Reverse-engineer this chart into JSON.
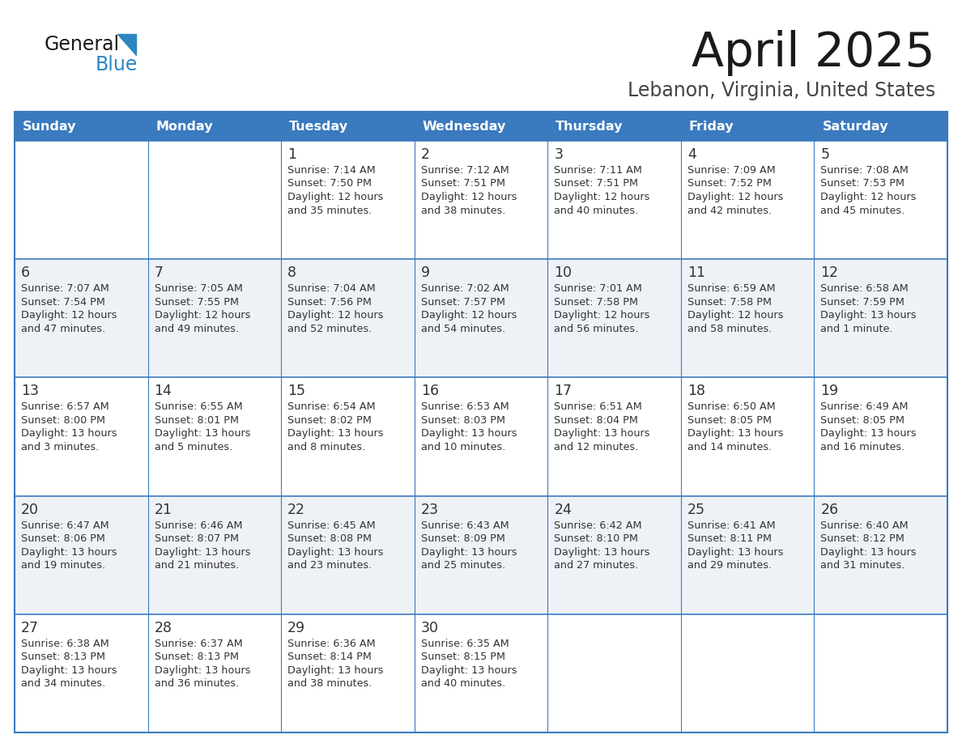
{
  "title": "April 2025",
  "subtitle": "Lebanon, Virginia, United States",
  "header_bg_color": "#3a7abf",
  "header_text_color": "#ffffff",
  "day_names": [
    "Sunday",
    "Monday",
    "Tuesday",
    "Wednesday",
    "Thursday",
    "Friday",
    "Saturday"
  ],
  "bg_color": "#ffffff",
  "row_even_color": "#ffffff",
  "row_odd_color": "#eef2f7",
  "cell_text_color": "#333333",
  "border_color": "#3a7abf",
  "logo_general_color": "#1a1a1a",
  "logo_blue_color": "#2e86c1",
  "logo_triangle_color": "#2e86c1",
  "title_color": "#1a1a1a",
  "subtitle_color": "#444444",
  "days": [
    {
      "day": 1,
      "col": 2,
      "row": 0,
      "sunrise": "7:14 AM",
      "sunset": "7:50 PM",
      "daylight": "12 hours and 35 minutes."
    },
    {
      "day": 2,
      "col": 3,
      "row": 0,
      "sunrise": "7:12 AM",
      "sunset": "7:51 PM",
      "daylight": "12 hours and 38 minutes."
    },
    {
      "day": 3,
      "col": 4,
      "row": 0,
      "sunrise": "7:11 AM",
      "sunset": "7:51 PM",
      "daylight": "12 hours and 40 minutes."
    },
    {
      "day": 4,
      "col": 5,
      "row": 0,
      "sunrise": "7:09 AM",
      "sunset": "7:52 PM",
      "daylight": "12 hours and 42 minutes."
    },
    {
      "day": 5,
      "col": 6,
      "row": 0,
      "sunrise": "7:08 AM",
      "sunset": "7:53 PM",
      "daylight": "12 hours and 45 minutes."
    },
    {
      "day": 6,
      "col": 0,
      "row": 1,
      "sunrise": "7:07 AM",
      "sunset": "7:54 PM",
      "daylight": "12 hours and 47 minutes."
    },
    {
      "day": 7,
      "col": 1,
      "row": 1,
      "sunrise": "7:05 AM",
      "sunset": "7:55 PM",
      "daylight": "12 hours and 49 minutes."
    },
    {
      "day": 8,
      "col": 2,
      "row": 1,
      "sunrise": "7:04 AM",
      "sunset": "7:56 PM",
      "daylight": "12 hours and 52 minutes."
    },
    {
      "day": 9,
      "col": 3,
      "row": 1,
      "sunrise": "7:02 AM",
      "sunset": "7:57 PM",
      "daylight": "12 hours and 54 minutes."
    },
    {
      "day": 10,
      "col": 4,
      "row": 1,
      "sunrise": "7:01 AM",
      "sunset": "7:58 PM",
      "daylight": "12 hours and 56 minutes."
    },
    {
      "day": 11,
      "col": 5,
      "row": 1,
      "sunrise": "6:59 AM",
      "sunset": "7:58 PM",
      "daylight": "12 hours and 58 minutes."
    },
    {
      "day": 12,
      "col": 6,
      "row": 1,
      "sunrise": "6:58 AM",
      "sunset": "7:59 PM",
      "daylight": "13 hours and 1 minute."
    },
    {
      "day": 13,
      "col": 0,
      "row": 2,
      "sunrise": "6:57 AM",
      "sunset": "8:00 PM",
      "daylight": "13 hours and 3 minutes."
    },
    {
      "day": 14,
      "col": 1,
      "row": 2,
      "sunrise": "6:55 AM",
      "sunset": "8:01 PM",
      "daylight": "13 hours and 5 minutes."
    },
    {
      "day": 15,
      "col": 2,
      "row": 2,
      "sunrise": "6:54 AM",
      "sunset": "8:02 PM",
      "daylight": "13 hours and 8 minutes."
    },
    {
      "day": 16,
      "col": 3,
      "row": 2,
      "sunrise": "6:53 AM",
      "sunset": "8:03 PM",
      "daylight": "13 hours and 10 minutes."
    },
    {
      "day": 17,
      "col": 4,
      "row": 2,
      "sunrise": "6:51 AM",
      "sunset": "8:04 PM",
      "daylight": "13 hours and 12 minutes."
    },
    {
      "day": 18,
      "col": 5,
      "row": 2,
      "sunrise": "6:50 AM",
      "sunset": "8:05 PM",
      "daylight": "13 hours and 14 minutes."
    },
    {
      "day": 19,
      "col": 6,
      "row": 2,
      "sunrise": "6:49 AM",
      "sunset": "8:05 PM",
      "daylight": "13 hours and 16 minutes."
    },
    {
      "day": 20,
      "col": 0,
      "row": 3,
      "sunrise": "6:47 AM",
      "sunset": "8:06 PM",
      "daylight": "13 hours and 19 minutes."
    },
    {
      "day": 21,
      "col": 1,
      "row": 3,
      "sunrise": "6:46 AM",
      "sunset": "8:07 PM",
      "daylight": "13 hours and 21 minutes."
    },
    {
      "day": 22,
      "col": 2,
      "row": 3,
      "sunrise": "6:45 AM",
      "sunset": "8:08 PM",
      "daylight": "13 hours and 23 minutes."
    },
    {
      "day": 23,
      "col": 3,
      "row": 3,
      "sunrise": "6:43 AM",
      "sunset": "8:09 PM",
      "daylight": "13 hours and 25 minutes."
    },
    {
      "day": 24,
      "col": 4,
      "row": 3,
      "sunrise": "6:42 AM",
      "sunset": "8:10 PM",
      "daylight": "13 hours and 27 minutes."
    },
    {
      "day": 25,
      "col": 5,
      "row": 3,
      "sunrise": "6:41 AM",
      "sunset": "8:11 PM",
      "daylight": "13 hours and 29 minutes."
    },
    {
      "day": 26,
      "col": 6,
      "row": 3,
      "sunrise": "6:40 AM",
      "sunset": "8:12 PM",
      "daylight": "13 hours and 31 minutes."
    },
    {
      "day": 27,
      "col": 0,
      "row": 4,
      "sunrise": "6:38 AM",
      "sunset": "8:13 PM",
      "daylight": "13 hours and 34 minutes."
    },
    {
      "day": 28,
      "col": 1,
      "row": 4,
      "sunrise": "6:37 AM",
      "sunset": "8:13 PM",
      "daylight": "13 hours and 36 minutes."
    },
    {
      "day": 29,
      "col": 2,
      "row": 4,
      "sunrise": "6:36 AM",
      "sunset": "8:14 PM",
      "daylight": "13 hours and 38 minutes."
    },
    {
      "day": 30,
      "col": 3,
      "row": 4,
      "sunrise": "6:35 AM",
      "sunset": "8:15 PM",
      "daylight": "13 hours and 40 minutes."
    }
  ]
}
